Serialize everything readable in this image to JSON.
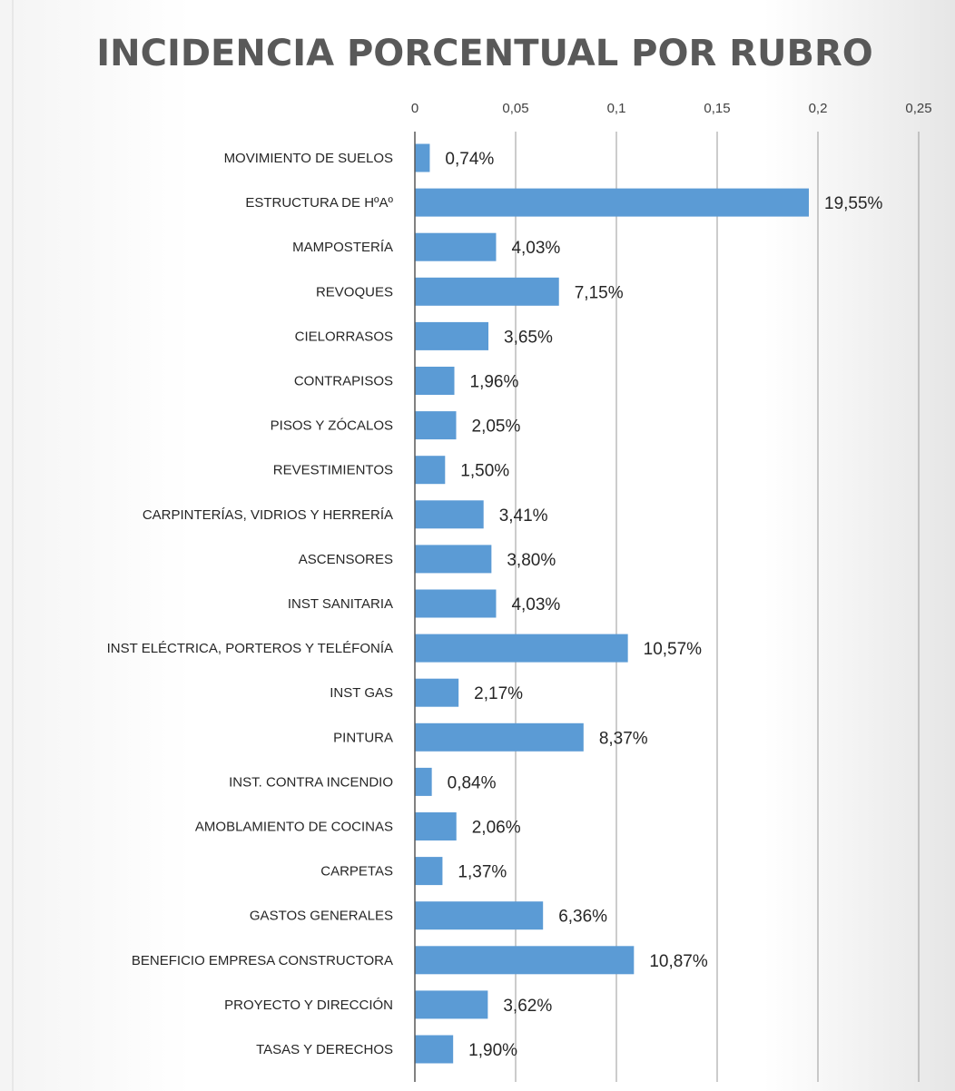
{
  "chart_data": {
    "type": "bar",
    "orientation": "horizontal",
    "title": "INCIDENCIA PORCENTUAL POR RUBRO",
    "xlim": [
      0,
      0.25
    ],
    "x_ticks": [
      "0",
      "0,05",
      "0,1",
      "0,15",
      "0,2",
      "0,25"
    ],
    "x_axis_position": "top",
    "grid": true,
    "legend": "none",
    "bar_color": "#5b9bd5",
    "categories": [
      "MOVIMIENTO DE SUELOS",
      "ESTRUCTURA DE HºAº",
      "MAMPOSTERÍA",
      "REVOQUES",
      "CIELORRASOS",
      "CONTRAPISOS",
      "PISOS Y ZÓCALOS",
      "REVESTIMIENTOS",
      "CARPINTERÍAS, VIDRIOS Y HERRERÍA",
      "ASCENSORES",
      "INST SANITARIA",
      "INST ELÉCTRICA, PORTEROS Y TELÉFONÍA",
      "INST GAS",
      "PINTURA",
      "INST. CONTRA INCENDIO",
      "AMOBLAMIENTO DE COCINAS",
      "CARPETAS",
      "GASTOS GENERALES",
      "BENEFICIO EMPRESA CONSTRUCTORA",
      "PROYECTO Y DIRECCIÓN",
      "TASAS Y DERECHOS"
    ],
    "values": [
      0.0074,
      0.1955,
      0.0403,
      0.0715,
      0.0365,
      0.0196,
      0.0205,
      0.015,
      0.0341,
      0.038,
      0.0403,
      0.1057,
      0.0217,
      0.0837,
      0.0084,
      0.0206,
      0.0137,
      0.0636,
      0.1087,
      0.0362,
      0.019
    ],
    "data_labels": [
      "0,74%",
      "19,55%",
      "4,03%",
      "7,15%",
      "3,65%",
      "1,96%",
      "2,05%",
      "1,50%",
      "3,41%",
      "3,80%",
      "4,03%",
      "10,57%",
      "2,17%",
      "8,37%",
      "0,84%",
      "2,06%",
      "1,37%",
      "6,36%",
      "10,87%",
      "3,62%",
      "1,90%"
    ]
  }
}
